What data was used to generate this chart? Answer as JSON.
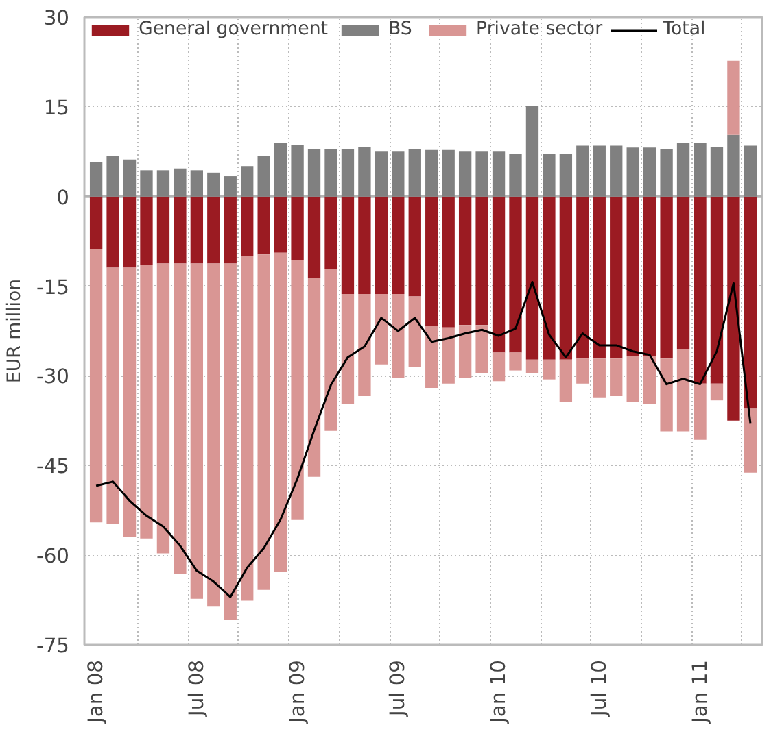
{
  "chart_data": {
    "type": "bar",
    "stacked": true,
    "ylabel": "EUR million",
    "categories": [
      "Jan 08",
      null,
      null,
      null,
      null,
      null,
      "Jul 08",
      null,
      null,
      null,
      null,
      null,
      "Jan 09",
      null,
      null,
      null,
      null,
      null,
      "Jul 09",
      null,
      null,
      null,
      null,
      null,
      "Jan 10",
      null,
      null,
      null,
      null,
      null,
      "Jul 10",
      null,
      null,
      null,
      null,
      null,
      "Jan 11",
      null,
      null,
      null
    ],
    "series": [
      {
        "name": "General government",
        "color": "#9b1b22",
        "values": [
          -8.8,
          -11.9,
          -11.9,
          -11.5,
          -11.2,
          -11.2,
          -11.2,
          -11.2,
          -11.2,
          -10.0,
          -9.7,
          -9.4,
          -10.7,
          -13.6,
          -12.1,
          -16.3,
          -16.3,
          -16.3,
          -16.3,
          -16.7,
          -21.7,
          -21.9,
          -21.5,
          -21.5,
          -26.1,
          -26.1,
          -27.3,
          -27.3,
          -27.3,
          -27.1,
          -27.1,
          -27.1,
          -26.7,
          -26.7,
          -27.1,
          -25.6,
          -31.3,
          -31.3,
          -37.5,
          -35.5
        ]
      },
      {
        "name": "BS",
        "color": "#808080",
        "values": [
          5.8,
          6.8,
          6.2,
          4.4,
          4.4,
          4.7,
          4.4,
          4.0,
          3.4,
          5.1,
          6.8,
          8.9,
          8.6,
          7.9,
          7.9,
          7.9,
          8.3,
          7.5,
          7.5,
          7.9,
          7.8,
          7.8,
          7.5,
          7.5,
          7.5,
          7.2,
          15.2,
          7.2,
          7.2,
          8.5,
          8.5,
          8.5,
          8.2,
          8.2,
          7.9,
          8.9,
          8.9,
          8.3,
          10.3,
          8.5
        ]
      },
      {
        "name": "Private sector",
        "color": "#d99694",
        "values": [
          -45.7,
          -42.9,
          -45.0,
          -45.7,
          -48.5,
          -51.9,
          -56.1,
          -57.4,
          -59.6,
          -57.6,
          -56.1,
          -53.4,
          -43.4,
          -33.3,
          -27.1,
          -18.4,
          -17.1,
          -11.8,
          -14.0,
          -11.8,
          -10.3,
          -9.4,
          -8.8,
          -8.0,
          -4.8,
          -3.0,
          -2.2,
          -3.3,
          -7.0,
          -4.2,
          -6.6,
          -6.3,
          -7.6,
          -8.0,
          -12.2,
          -13.7,
          -9.4,
          -2.8,
          12.4,
          -10.7
        ]
      },
      {
        "name": "Total",
        "type": "line",
        "color": "#000000",
        "values": [
          -48.4,
          -47.7,
          -50.9,
          -53.4,
          -55.2,
          -58.4,
          -62.6,
          -64.4,
          -67.0,
          -62.1,
          -58.8,
          -54.0,
          -47.2,
          -39.1,
          -31.5,
          -26.9,
          -25.1,
          -20.3,
          -22.5,
          -20.3,
          -24.3,
          -23.7,
          -22.9,
          -22.3,
          -23.3,
          -22.1,
          -14.3,
          -23.1,
          -26.9,
          -22.9,
          -24.9,
          -24.9,
          -25.9,
          -26.5,
          -31.4,
          -30.5,
          -31.4,
          -25.9,
          -14.5,
          -37.9
        ]
      }
    ],
    "ylim": [
      -75,
      30
    ],
    "yticks": [
      -75,
      -60,
      -45,
      -30,
      -15,
      0,
      15,
      30
    ],
    "ref_lines": [
      {
        "axis": "y",
        "value": 0,
        "color": "#b4b4b4"
      }
    ],
    "grid": true,
    "legend": "top left"
  }
}
